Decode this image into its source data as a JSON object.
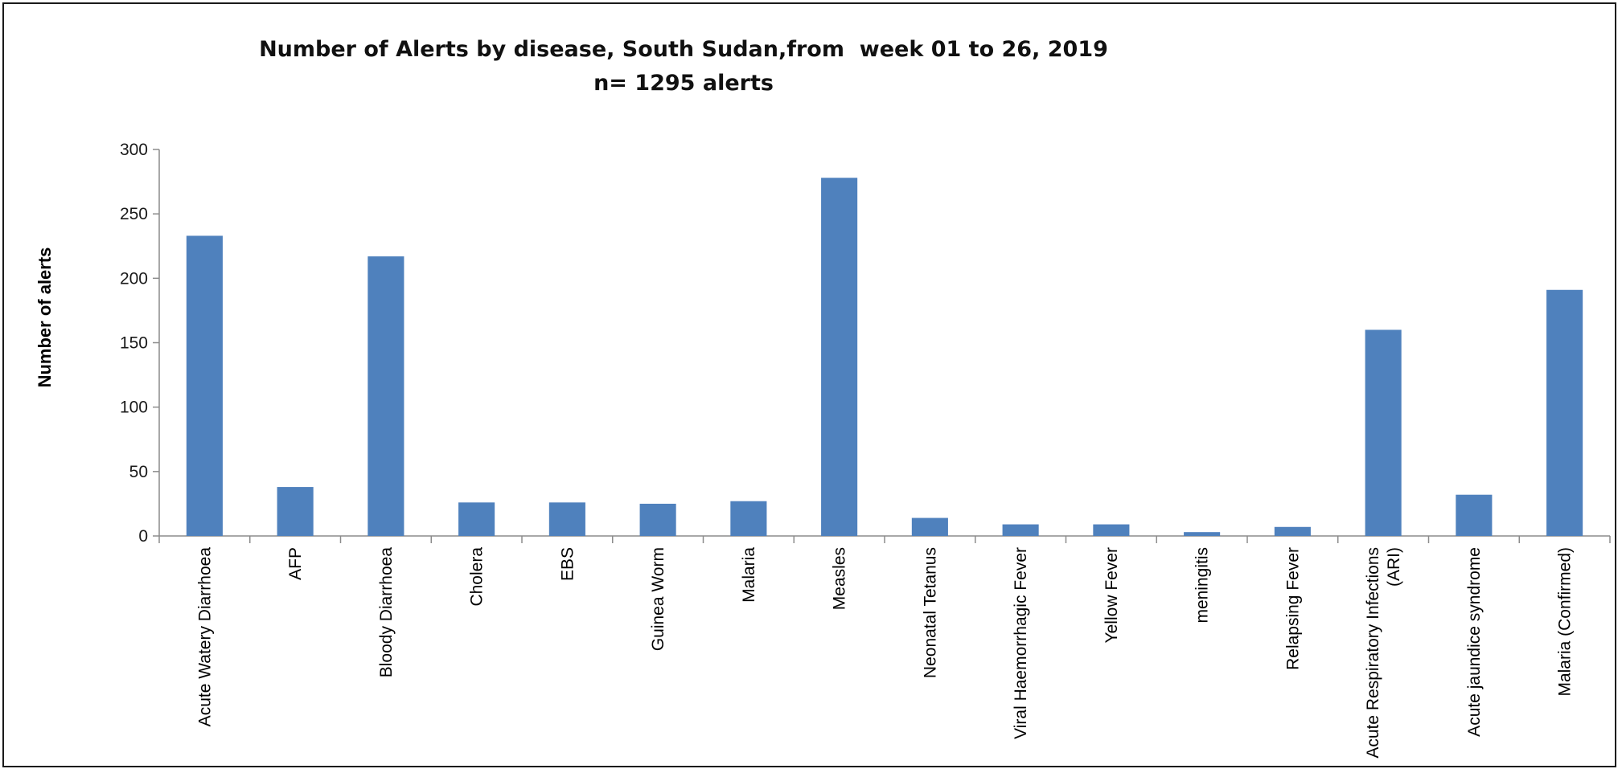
{
  "chart_data": {
    "type": "bar",
    "title": "Number of Alerts by disease, South Sudan,from  week 01 to 26, 2019",
    "subtitle": "n= 1295 alerts",
    "ylabel": "Number of alerts",
    "xlabel": "",
    "ylim": [
      0,
      300
    ],
    "yticks": [
      0,
      50,
      100,
      150,
      200,
      250,
      300
    ],
    "grid": false,
    "color": "#4f81bd",
    "categories": [
      [
        "Acute Watery Diarrhoea"
      ],
      [
        "AFP"
      ],
      [
        "Bloody Diarrhoea"
      ],
      [
        "Cholera"
      ],
      [
        "EBS"
      ],
      [
        "Guinea Worm"
      ],
      [
        "Malaria"
      ],
      [
        "Measles"
      ],
      [
        "Neonatal Tetanus"
      ],
      [
        "Viral Haemorrhagic Fever"
      ],
      [
        "Yellow Fever"
      ],
      [
        "meningitis"
      ],
      [
        "Relapsing Fever"
      ],
      [
        "Acute Respiratory Infections",
        "(ARI)"
      ],
      [
        "Acute jaundice syndrome"
      ],
      [
        "Malaria (Confirmed)"
      ]
    ],
    "values": [
      233,
      38,
      217,
      26,
      26,
      25,
      27,
      278,
      14,
      9,
      9,
      3,
      7,
      160,
      32,
      191
    ]
  }
}
